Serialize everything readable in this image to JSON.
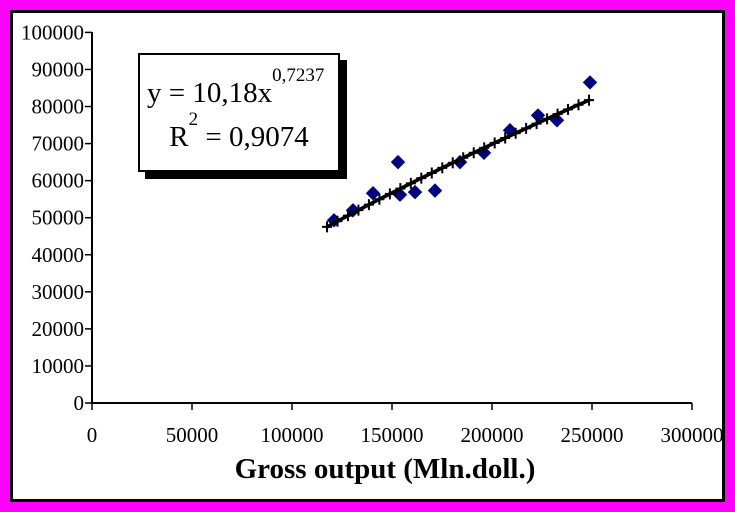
{
  "colors": {
    "frame": "#FF00FF",
    "plot_background": "#FFFFFF",
    "axis": "#000000",
    "point_fill": "#000080",
    "trendline": "#000000",
    "equation_text": "#000000"
  },
  "chart_data": {
    "type": "scatter",
    "title": "",
    "xlabel": "Gross output (Mln.doll.)",
    "ylabel": "",
    "xlim": [
      0,
      300000
    ],
    "ylim": [
      0,
      100000
    ],
    "grid": false,
    "legend": "none",
    "x_ticks": [
      0,
      50000,
      100000,
      150000,
      200000,
      250000,
      300000
    ],
    "y_ticks": [
      0,
      10000,
      20000,
      30000,
      40000,
      50000,
      60000,
      70000,
      80000,
      90000,
      100000
    ],
    "points": [
      {
        "x": 121000,
        "y": 49300
      },
      {
        "x": 130500,
        "y": 52000
      },
      {
        "x": 140500,
        "y": 56600
      },
      {
        "x": 153000,
        "y": 65000
      },
      {
        "x": 154000,
        "y": 56200
      },
      {
        "x": 161500,
        "y": 56900
      },
      {
        "x": 171500,
        "y": 57300
      },
      {
        "x": 184000,
        "y": 65000
      },
      {
        "x": 196000,
        "y": 67500
      },
      {
        "x": 209000,
        "y": 73600
      },
      {
        "x": 223000,
        "y": 77600
      },
      {
        "x": 232500,
        "y": 76300
      },
      {
        "x": 249000,
        "y": 86500
      }
    ],
    "trendline": {
      "type": "power",
      "coefficient": 10.18,
      "exponent": 0.7237,
      "x_start": 117500,
      "x_end": 248500,
      "marker_count": 26,
      "equation_text": "y = 10,18x^0,7237",
      "r_squared_text": "R2 = 0,9074"
    },
    "annotation": {
      "line1_base": "y = 10,18x",
      "line1_exp": "0,7237",
      "line2_base": "R",
      "line2_sup": "2",
      "line2_rest": " = 0,9074"
    }
  }
}
